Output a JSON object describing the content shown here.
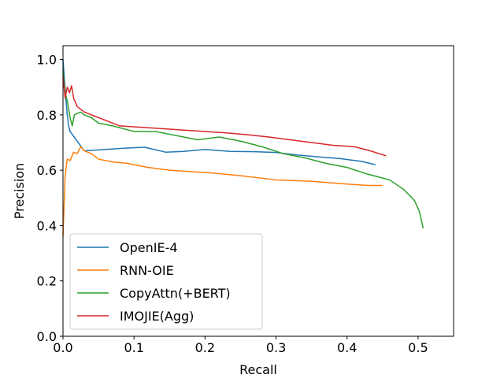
{
  "chart_data": {
    "type": "line",
    "xlabel": "Recall",
    "ylabel": "Precision",
    "xlim": [
      0.0,
      0.55
    ],
    "ylim": [
      0.0,
      1.05
    ],
    "xticks": [
      0.0,
      0.1,
      0.2,
      0.3,
      0.4,
      0.5
    ],
    "xtick_labels": [
      "0.0",
      "0.1",
      "0.2",
      "0.3",
      "0.4",
      "0.5"
    ],
    "yticks": [
      0.0,
      0.2,
      0.4,
      0.6,
      0.8,
      1.0
    ],
    "ytick_labels": [
      "0.0",
      "0.2",
      "0.4",
      "0.6",
      "0.8",
      "1.0"
    ],
    "grid": false,
    "legend_position": "lower-left",
    "series": [
      {
        "name": "OpenIE-4",
        "color": "#1f77b4",
        "x": [
          0.0,
          0.002,
          0.004,
          0.006,
          0.008,
          0.01,
          0.03,
          0.06,
          0.09,
          0.115,
          0.145,
          0.17,
          0.2,
          0.235,
          0.27,
          0.3,
          0.33,
          0.36,
          0.39,
          0.42,
          0.44
        ],
        "y": [
          1.0,
          0.93,
          0.86,
          0.8,
          0.76,
          0.74,
          0.67,
          0.675,
          0.68,
          0.683,
          0.665,
          0.668,
          0.675,
          0.668,
          0.667,
          0.664,
          0.655,
          0.648,
          0.642,
          0.632,
          0.62
        ]
      },
      {
        "name": "RNN-OIE",
        "color": "#ff7f0e",
        "x": [
          0.0,
          0.003,
          0.006,
          0.01,
          0.015,
          0.02,
          0.025,
          0.03,
          0.04,
          0.05,
          0.07,
          0.09,
          0.12,
          0.15,
          0.18,
          0.21,
          0.25,
          0.3,
          0.35,
          0.4,
          0.43,
          0.45
        ],
        "y": [
          0.36,
          0.58,
          0.64,
          0.635,
          0.665,
          0.66,
          0.685,
          0.67,
          0.66,
          0.64,
          0.63,
          0.625,
          0.61,
          0.6,
          0.595,
          0.59,
          0.58,
          0.565,
          0.56,
          0.55,
          0.545,
          0.545
        ]
      },
      {
        "name": "CopyAttn(+BERT)",
        "color": "#2ca02c",
        "x": [
          0.0,
          0.003,
          0.006,
          0.01,
          0.013,
          0.016,
          0.02,
          0.025,
          0.03,
          0.04,
          0.05,
          0.07,
          0.1,
          0.13,
          0.16,
          0.19,
          0.22,
          0.25,
          0.28,
          0.31,
          0.34,
          0.37,
          0.4,
          0.43,
          0.46,
          0.48,
          0.495,
          0.502,
          0.505,
          0.507
        ],
        "y": [
          0.96,
          0.88,
          0.85,
          0.79,
          0.76,
          0.8,
          0.805,
          0.81,
          0.8,
          0.79,
          0.77,
          0.76,
          0.74,
          0.74,
          0.725,
          0.71,
          0.72,
          0.705,
          0.685,
          0.66,
          0.645,
          0.625,
          0.61,
          0.585,
          0.565,
          0.53,
          0.49,
          0.45,
          0.415,
          0.39
        ]
      },
      {
        "name": "IMOJIE(Agg)",
        "color": "#d62728",
        "x": [
          0.0,
          0.003,
          0.006,
          0.009,
          0.012,
          0.015,
          0.02,
          0.03,
          0.05,
          0.08,
          0.11,
          0.14,
          0.17,
          0.2,
          0.23,
          0.26,
          0.29,
          0.32,
          0.35,
          0.38,
          0.41,
          0.43,
          0.455
        ],
        "y": [
          0.94,
          0.86,
          0.9,
          0.88,
          0.905,
          0.86,
          0.83,
          0.81,
          0.79,
          0.76,
          0.755,
          0.75,
          0.745,
          0.74,
          0.735,
          0.728,
          0.72,
          0.71,
          0.7,
          0.69,
          0.685,
          0.672,
          0.652
        ]
      }
    ]
  }
}
